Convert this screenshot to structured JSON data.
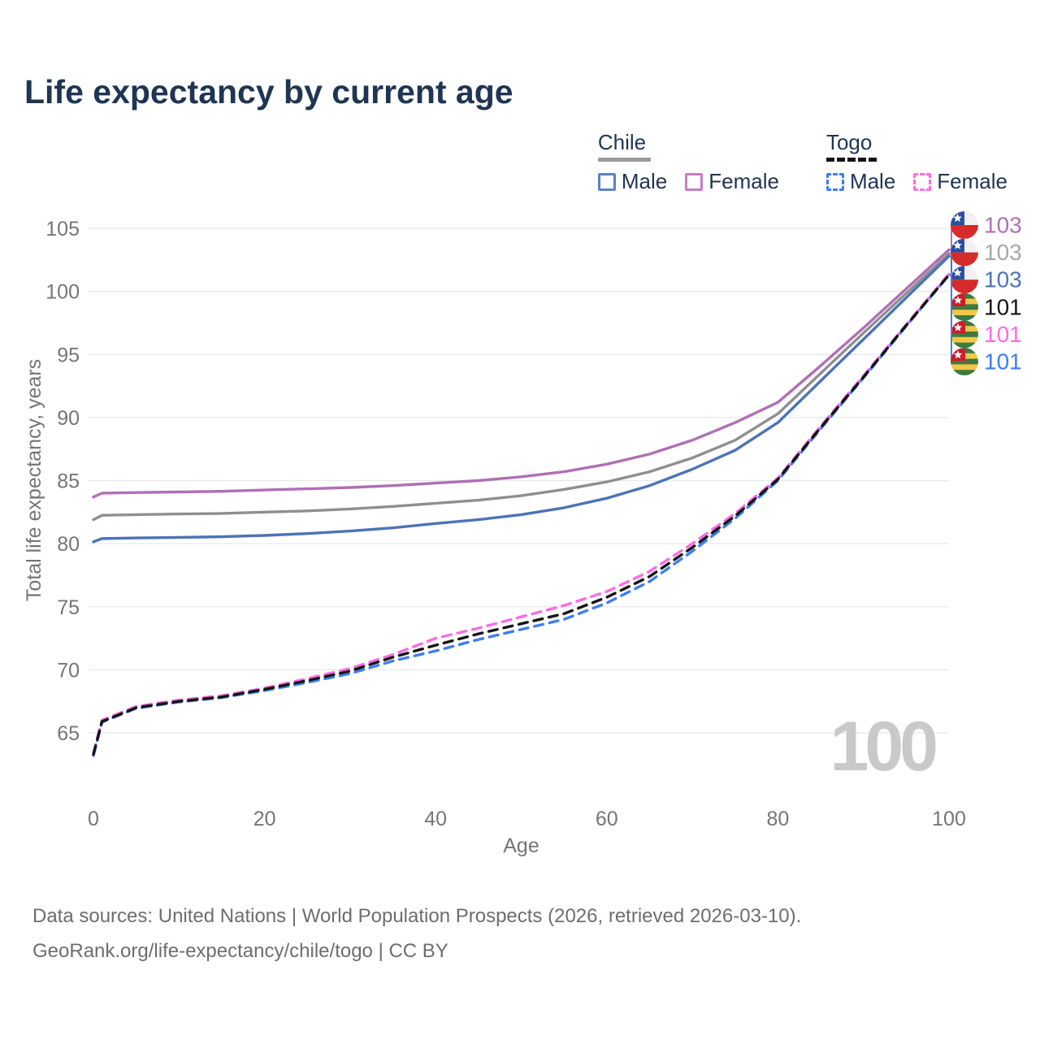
{
  "title": "Life expectancy by current age",
  "watermark": "100",
  "colors": {
    "title": "#1e3553",
    "legend_text": "#1e3553",
    "grid": "#e8e8e8",
    "axis_text": "#757575",
    "footer_text": "#6d6d6d",
    "watermark": "#c9c9c9"
  },
  "legend": {
    "groups": [
      {
        "name": "Chile",
        "line_style": "solid",
        "underline_color": "#9a9a9a",
        "items": [
          {
            "label": "Male",
            "color": "#5b82c4",
            "box_style": "solid"
          },
          {
            "label": "Female",
            "color": "#c47fc4",
            "box_style": "solid"
          }
        ]
      },
      {
        "name": "Togo",
        "line_style": "dashed",
        "underline_color": "#141414",
        "items": [
          {
            "label": "Male",
            "color": "#3d7ef2",
            "box_style": "dashed"
          },
          {
            "label": "Female",
            "color": "#fb6ce4",
            "box_style": "dashed"
          }
        ]
      }
    ]
  },
  "chart_data": {
    "type": "line",
    "title": "Life expectancy by current age",
    "xlabel": "Age",
    "ylabel": "Total life expectancy, years",
    "xlim": [
      0,
      100
    ],
    "ylim": [
      65,
      105
    ],
    "xticks": [
      0,
      20,
      40,
      60,
      80,
      100
    ],
    "yticks": [
      65,
      70,
      75,
      80,
      85,
      90,
      95,
      100,
      105
    ],
    "grid": true,
    "legend_position": "top-right",
    "x": [
      0,
      1,
      5,
      10,
      15,
      20,
      25,
      30,
      35,
      40,
      45,
      50,
      55,
      60,
      65,
      70,
      75,
      80,
      85,
      90,
      95,
      100
    ],
    "series": [
      {
        "id": "chile-female",
        "country": "Chile",
        "sex": "Female",
        "flag": "chile",
        "dash": false,
        "color": "#b06fb5",
        "label_color": "#b06fb5",
        "end_label": "103",
        "values": [
          83.7,
          84.0,
          84.05,
          84.1,
          84.15,
          84.25,
          84.35,
          84.45,
          84.6,
          84.8,
          85.0,
          85.3,
          85.7,
          86.3,
          87.1,
          88.2,
          89.6,
          91.2,
          94.1,
          97.1,
          100.2,
          103.3
        ]
      },
      {
        "id": "chile-all",
        "country": "Chile",
        "sex": "Both",
        "flag": "chile",
        "dash": false,
        "color": "#8f8f8f",
        "label_color": "#a8a8a8",
        "end_label": "103",
        "values": [
          81.9,
          82.25,
          82.3,
          82.35,
          82.4,
          82.5,
          82.6,
          82.75,
          82.95,
          83.2,
          83.45,
          83.8,
          84.3,
          84.9,
          85.7,
          86.8,
          88.2,
          90.3,
          93.5,
          96.7,
          99.85,
          103.0
        ]
      },
      {
        "id": "chile-male",
        "country": "Chile",
        "sex": "Male",
        "flag": "chile",
        "dash": false,
        "color": "#4c73b6",
        "label_color": "#4c73b6",
        "end_label": "103",
        "values": [
          80.15,
          80.4,
          80.45,
          80.5,
          80.55,
          80.65,
          80.8,
          81.0,
          81.25,
          81.6,
          81.9,
          82.3,
          82.85,
          83.6,
          84.6,
          85.9,
          87.4,
          89.6,
          92.9,
          96.2,
          99.5,
          102.8
        ]
      },
      {
        "id": "togo-all",
        "country": "Togo",
        "sex": "Both",
        "flag": "togo",
        "dash": true,
        "color": "#141414",
        "label_color": "#141414",
        "end_label": "101",
        "values": [
          63.3,
          65.9,
          67.0,
          67.5,
          67.85,
          68.45,
          69.15,
          69.9,
          71.0,
          71.95,
          72.85,
          73.65,
          74.45,
          75.75,
          77.4,
          79.7,
          82.2,
          85.1,
          89.2,
          93.2,
          97.3,
          101.3
        ]
      },
      {
        "id": "togo-female",
        "country": "Togo",
        "sex": "Female",
        "flag": "togo",
        "dash": true,
        "color": "#fb6ce4",
        "label_color": "#fb6ce4",
        "end_label": "101",
        "values": [
          63.4,
          66.0,
          67.1,
          67.6,
          67.95,
          68.55,
          69.3,
          70.1,
          71.2,
          72.5,
          73.3,
          74.2,
          75.1,
          76.2,
          77.8,
          80.0,
          82.4,
          85.2,
          89.3,
          93.3,
          97.35,
          101.4
        ]
      },
      {
        "id": "togo-male",
        "country": "Togo",
        "sex": "Male",
        "flag": "togo",
        "dash": true,
        "color": "#3d7ef2",
        "label_color": "#3d7ef2",
        "end_label": "101",
        "values": [
          63.2,
          65.85,
          66.95,
          67.45,
          67.8,
          68.35,
          69.0,
          69.7,
          70.7,
          71.5,
          72.4,
          73.2,
          74.0,
          75.3,
          77.0,
          79.4,
          82.0,
          85.0,
          89.1,
          93.15,
          97.25,
          101.3
        ]
      }
    ]
  },
  "flags": {
    "chile": {
      "blue": "#2a4fa2",
      "red": "#d62b2b",
      "white": "#f1f1f3"
    },
    "togo": {
      "green": "#3e7a3e",
      "yellow": "#efc948",
      "red": "#cf1b2b",
      "white": "#ffffff"
    }
  },
  "footer": {
    "line1": "Data sources: United Nations | World Population Prospects (2026, retrieved 2026-03-10).",
    "line2": "GeoRank.org/life-expectancy/chile/togo | CC BY"
  }
}
